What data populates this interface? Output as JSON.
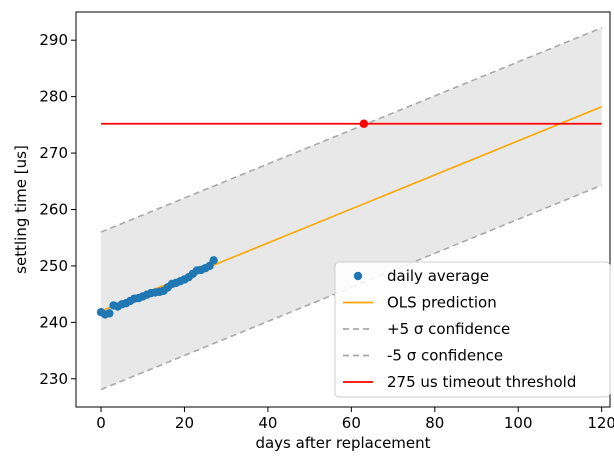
{
  "chart_data": {
    "type": "scatter",
    "xlabel": "days after replacement",
    "ylabel": "settling time [us]",
    "xlim": [
      -6,
      122
    ],
    "ylim": [
      225,
      295
    ],
    "x_ticks": [
      0,
      20,
      40,
      60,
      80,
      100,
      120
    ],
    "y_ticks": [
      230,
      240,
      250,
      260,
      270,
      280,
      290
    ],
    "grid": false,
    "legend_position": "bottom-right",
    "series": [
      {
        "name": "daily average",
        "kind": "scatter",
        "color": "#1f77b4",
        "x": [
          0,
          1,
          2,
          3,
          4,
          5,
          6,
          7,
          8,
          9,
          10,
          11,
          12,
          13,
          14,
          15,
          16,
          17,
          18,
          19,
          20,
          21,
          22,
          23,
          24,
          25,
          26,
          27
        ],
        "y": [
          241.8,
          241.4,
          241.6,
          243.0,
          242.8,
          243.2,
          243.4,
          243.8,
          244.2,
          244.3,
          244.6,
          244.9,
          245.2,
          245.3,
          245.4,
          245.6,
          246.2,
          246.8,
          247.0,
          247.3,
          247.6,
          248.0,
          248.6,
          249.2,
          249.3,
          249.6,
          250.0,
          251.0
        ]
      },
      {
        "name": "OLS prediction",
        "kind": "line",
        "color": "#ffa500",
        "x": [
          0,
          120
        ],
        "y": [
          242.0,
          278.2
        ]
      },
      {
        "name": "+5 σ confidence",
        "kind": "dashed-line",
        "color": "#a9a9a9",
        "x": [
          0,
          120
        ],
        "y": [
          256.0,
          292.2
        ]
      },
      {
        "name": "-5 σ confidence",
        "kind": "dashed-line",
        "color": "#a9a9a9",
        "x": [
          0,
          120
        ],
        "y": [
          228.1,
          264.3
        ]
      },
      {
        "name": "275 us timeout threshold",
        "kind": "hline",
        "color": "#ff0000",
        "x": [
          0,
          120
        ],
        "y": [
          275.2,
          275.2
        ]
      }
    ],
    "marker": {
      "x": 63,
      "y": 275.2,
      "color": "#ff0000"
    },
    "band_color": "#e8e8e8"
  }
}
